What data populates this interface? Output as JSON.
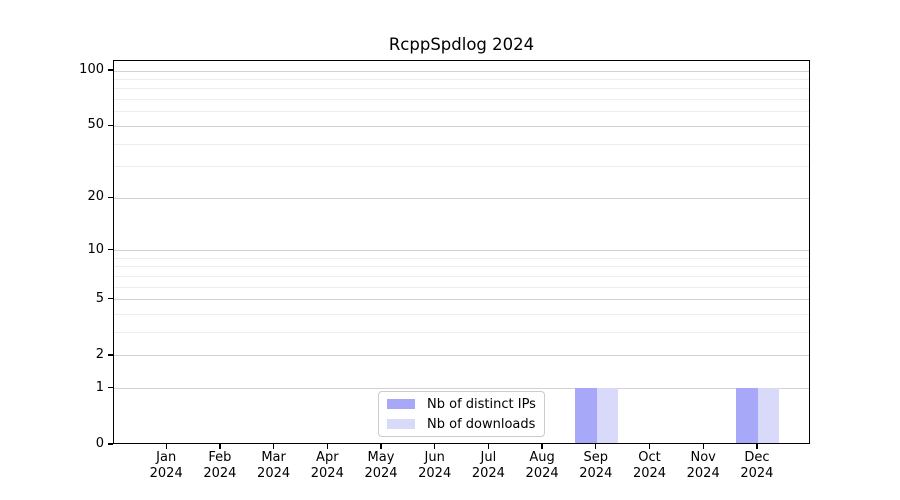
{
  "chart_data": {
    "type": "bar",
    "title": "RcppSpdlog 2024",
    "x_labels": [
      {
        "month": "Jan",
        "year": "2024"
      },
      {
        "month": "Feb",
        "year": "2024"
      },
      {
        "month": "Mar",
        "year": "2024"
      },
      {
        "month": "Apr",
        "year": "2024"
      },
      {
        "month": "May",
        "year": "2024"
      },
      {
        "month": "Jun",
        "year": "2024"
      },
      {
        "month": "Jul",
        "year": "2024"
      },
      {
        "month": "Aug",
        "year": "2024"
      },
      {
        "month": "Sep",
        "year": "2024"
      },
      {
        "month": "Oct",
        "year": "2024"
      },
      {
        "month": "Nov",
        "year": "2024"
      },
      {
        "month": "Dec",
        "year": "2024"
      }
    ],
    "series": [
      {
        "name": "Nb of distinct IPs",
        "color": "#a8a8f8",
        "values": [
          0,
          0,
          0,
          0,
          0,
          0,
          0,
          0,
          1,
          0,
          0,
          1
        ]
      },
      {
        "name": "Nb of downloads",
        "color": "#d9d9f9",
        "values": [
          0,
          0,
          0,
          0,
          0,
          0,
          0,
          0,
          1,
          0,
          0,
          1
        ]
      }
    ],
    "yscale": "log1p",
    "ylim": [
      0,
      113
    ],
    "y_major_ticks": [
      0,
      1,
      2,
      5,
      10,
      20,
      50,
      100
    ],
    "y_minor_ticks": [
      3,
      4,
      6,
      7,
      8,
      9,
      30,
      40,
      60,
      70,
      80,
      90
    ],
    "grid": "horizontal",
    "legend": {
      "entries": [
        "Nb of distinct IPs",
        "Nb of downloads"
      ],
      "position": "inside-bottom-center"
    },
    "colors": {
      "grid_major": "#d2d2d2",
      "grid_minor": "#ededed",
      "axis": "#000000",
      "legend_border": "#cccccc",
      "background": "#ffffff",
      "text": "#000000"
    }
  }
}
